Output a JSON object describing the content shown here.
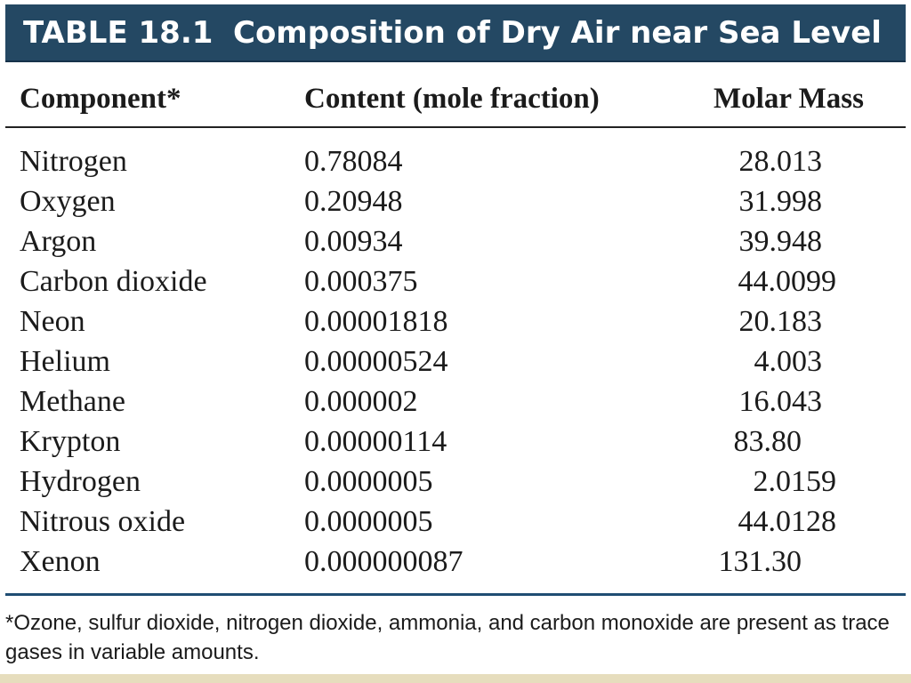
{
  "title_bar": {
    "label": "TABLE 18.1",
    "title": "Composition of Dry Air near Sea Level"
  },
  "columns": {
    "component": "Component*",
    "content": "Content (mole fraction)",
    "molar_mass": "Molar Mass"
  },
  "rows": [
    {
      "component": "Nitrogen",
      "content": "0.78084",
      "molar_mass": "28.013"
    },
    {
      "component": "Oxygen",
      "content": "0.20948",
      "molar_mass": "31.998"
    },
    {
      "component": "Argon",
      "content": "0.00934",
      "molar_mass": "39.948"
    },
    {
      "component": "Carbon dioxide",
      "content": "0.000375",
      "molar_mass": "44.0099"
    },
    {
      "component": "Neon",
      "content": "0.00001818",
      "molar_mass": "20.183"
    },
    {
      "component": "Helium",
      "content": "0.00000524",
      "molar_mass": "4.003"
    },
    {
      "component": "Methane",
      "content": "0.000002",
      "molar_mass": "16.043"
    },
    {
      "component": "Krypton",
      "content": "0.00000114",
      "molar_mass": "83.80"
    },
    {
      "component": "Hydrogen",
      "content": "0.0000005",
      "molar_mass": "2.0159"
    },
    {
      "component": "Nitrous oxide",
      "content": "0.0000005",
      "molar_mass": "44.0128"
    },
    {
      "component": "Xenon",
      "content": "0.000000087",
      "molar_mass": "131.30"
    }
  ],
  "footnote": "*Ozone, sulfur dioxide, nitrogen dioxide, ammonia, and carbon monoxide are present as trace gases in variable amounts.",
  "colors": {
    "title_bar": "#244863",
    "title_text": "#ffffff",
    "bottom_rule": "#1f4d73",
    "bottom_band": "#e6ddbd"
  }
}
